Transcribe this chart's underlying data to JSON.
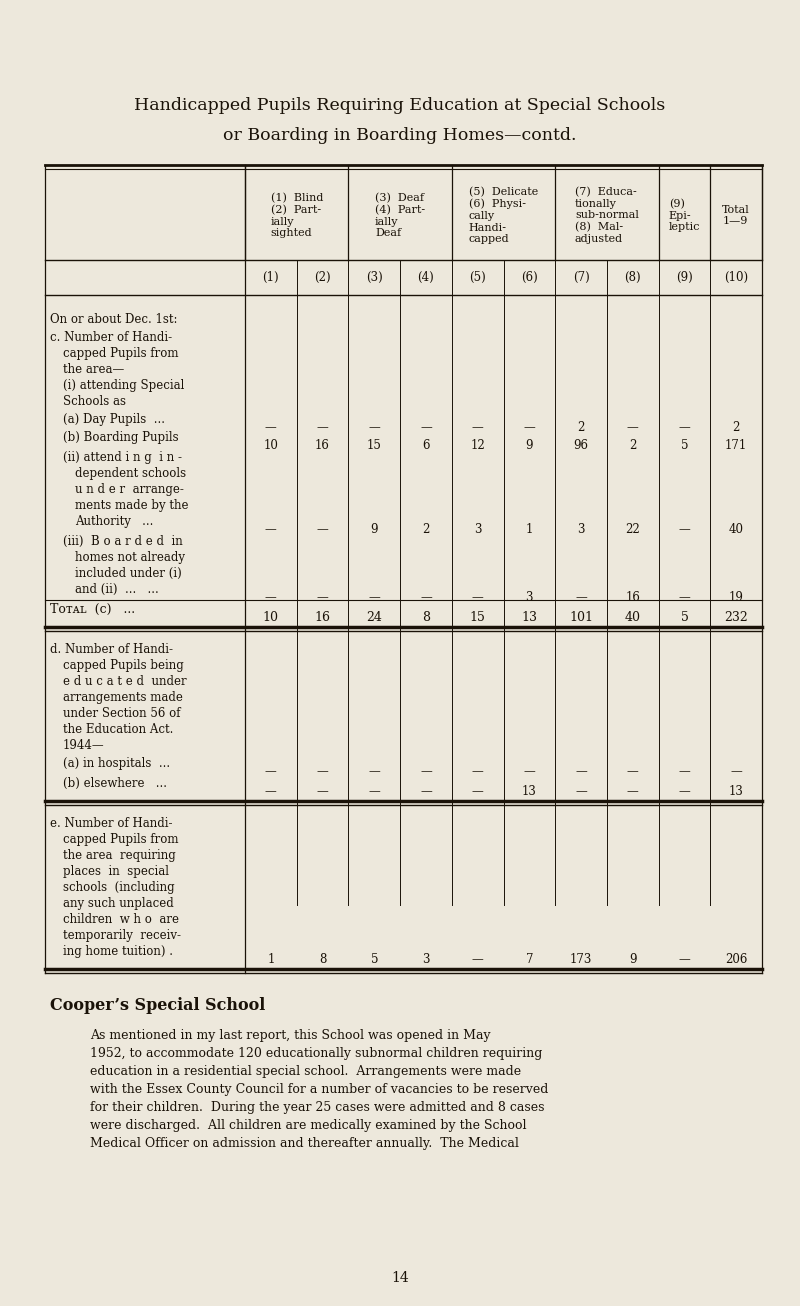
{
  "title_line1": "Handicapped Pupils Requiring Education at Special Schools",
  "title_line2": "or Boarding in Boarding Homes—contd.",
  "bg_color": "#ede8dc",
  "text_color": "#1a1208",
  "col_headers_text": [
    "(1)  Blind\n(2)  Part-\nially\nsighted",
    "(3)  Deaf\n(4)  Part-\nially\nDeaf",
    "(5)  Delicate\n(6)  Physi-\ncally\nHandi-\ncapped",
    "(7)  Educa-\ntionally\nsub-normal\n(8)  Mal-\nadjusted",
    "(9)\nEpi-\nleptic",
    "Total\n1—9"
  ],
  "col_nums": [
    "(1)",
    "(2)",
    "(3)",
    "(4)",
    "(5)",
    "(6)",
    "(7)",
    "(8)",
    "(9)",
    "(10)"
  ],
  "row_a_day_values": [
    "—",
    "—",
    "—",
    "—",
    "—",
    "—",
    "2",
    "—",
    "—",
    "2"
  ],
  "row_b_boarding_values": [
    "10",
    "16",
    "15",
    "6",
    "12",
    "9",
    "96",
    "2",
    "5",
    "171"
  ],
  "row_ii_values": [
    "—",
    "—",
    "9",
    "2",
    "3",
    "1",
    "3",
    "22",
    "—",
    "40"
  ],
  "row_iii_values": [
    "—",
    "—",
    "—",
    "—",
    "—",
    "3",
    "—",
    "16",
    "—",
    "19"
  ],
  "row_total_c_values": [
    "10",
    "16",
    "24",
    "8",
    "15",
    "13",
    "101",
    "40",
    "5",
    "232"
  ],
  "row_d_hospitals_values": [
    "—",
    "—",
    "—",
    "—",
    "—",
    "—",
    "—",
    "—",
    "—",
    "—"
  ],
  "row_d_elsewhere_values": [
    "—",
    "—",
    "—",
    "—",
    "—",
    "13",
    "—",
    "—",
    "—",
    "13"
  ],
  "row_e_values": [
    "1",
    "8",
    "5",
    "3",
    "—",
    "7",
    "173",
    "9",
    "—",
    "206"
  ],
  "coopers_title": "Cooper’s Special School",
  "coopers_lines": [
    "As mentioned in my last report, this School was opened in May",
    "1952, to accommodate 120 educationally subnormal children requiring",
    "education in a residential special school.  Arrangements were made",
    "with the Essex County Council for a number of vacancies to be reserved",
    "for their children.  During the year 25 cases were admitted and 8 cases",
    "were discharged.  All children are medically examined by the School",
    "Medical Officer on admission and thereafter annually.  The Medical"
  ],
  "page_number": "14"
}
